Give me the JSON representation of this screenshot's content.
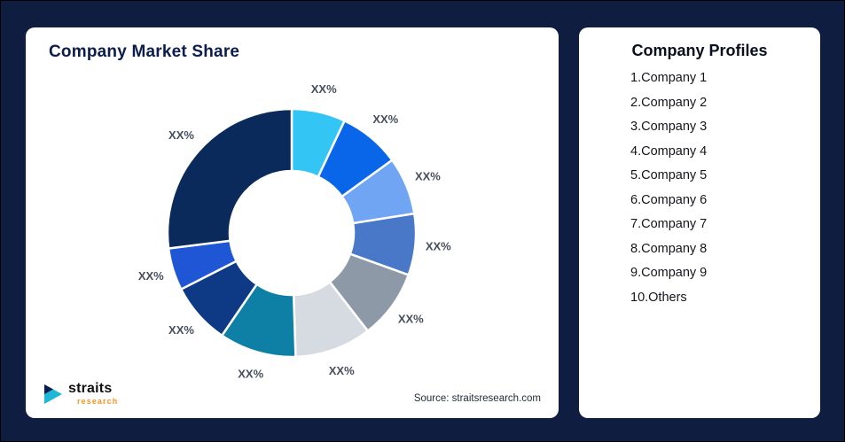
{
  "colors": {
    "page_bg": "#0F1D40",
    "card_bg": "#FFFFFF",
    "title_navy": "#0C1C4D",
    "slice_label_gray": "#474E5C",
    "logo_teal": "#1FB7D8",
    "logo_navy": "#0C1C4D",
    "logo_orange": "#F7941D"
  },
  "left_card": {
    "title": "Company Market Share",
    "source": "Source: straitsresearch.com",
    "logo": {
      "name": "straits",
      "sub": "research",
      "icon": "straits-arrow-icon"
    }
  },
  "right_card": {
    "title": "Company Profiles",
    "items": [
      "1.Company 1",
      "2.Company 2",
      "3.Company 3",
      "4.Company 4",
      "5.Company 5",
      "6.Company 6",
      "7.Company 7",
      "8.Company 8",
      "9.Company 9",
      "10.Others"
    ]
  },
  "chart_data": {
    "type": "pie",
    "subtype": "donut",
    "title": "Company Market Share",
    "categories": [
      "Company 1",
      "Company 2",
      "Company 3",
      "Company 4",
      "Company 5",
      "Company 6",
      "Company 7",
      "Company 8",
      "Company 9",
      "Others"
    ],
    "value_labels": [
      "XX%",
      "XX%",
      "XX%",
      "XX%",
      "XX%",
      "XX%",
      "XX%",
      "XX%",
      "XX%",
      "XX%"
    ],
    "values": [
      7,
      8,
      7.5,
      8,
      9,
      10,
      10,
      8,
      5.5,
      27
    ],
    "values_are_estimates_from_arc_size": true,
    "colors": [
      "#33C5F3",
      "#0A66E8",
      "#6FA5F2",
      "#4A78C9",
      "#8E99A8",
      "#D5DBE1",
      "#0E80A6",
      "#0E3A85",
      "#1E56D6",
      "#0B2A5C"
    ],
    "start_angle_deg": 0,
    "direction": "clockwise",
    "inner_radius_ratio": 0.5,
    "legend": "none",
    "source": "Source: straitsresearch.com"
  }
}
